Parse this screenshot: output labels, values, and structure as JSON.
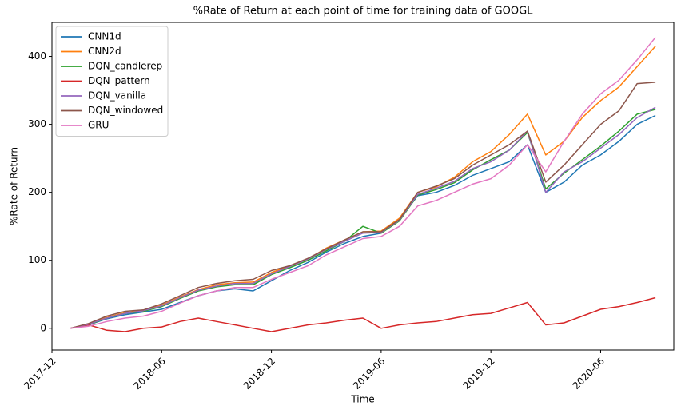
{
  "chart_data": {
    "type": "line",
    "title": "%Rate of Return at each point of time for training data of GOOGL",
    "x_label": "Time",
    "y_label": "%Rate of Return",
    "x": [
      "2018-01",
      "2018-02",
      "2018-03",
      "2018-04",
      "2018-05",
      "2018-06",
      "2018-07",
      "2018-08",
      "2018-09",
      "2018-10",
      "2018-11",
      "2018-12",
      "2019-01",
      "2019-02",
      "2019-03",
      "2019-04",
      "2019-05",
      "2019-06",
      "2019-07",
      "2019-08",
      "2019-09",
      "2019-10",
      "2019-11",
      "2019-12",
      "2020-01",
      "2020-02",
      "2020-03",
      "2020-04",
      "2020-05",
      "2020-06",
      "2020-07",
      "2020-08",
      "2020-09"
    ],
    "series": [
      {
        "name": "CNN1d",
        "color": "#1f77b4",
        "values": [
          0,
          5,
          14,
          20,
          24,
          28,
          38,
          48,
          55,
          58,
          55,
          70,
          85,
          97,
          112,
          125,
          135,
          140,
          160,
          195,
          200,
          210,
          225,
          235,
          245,
          270,
          200,
          215,
          240,
          255,
          275,
          300,
          313
        ]
      },
      {
        "name": "CNN2d",
        "color": "#ff7f0e",
        "values": [
          0,
          6,
          16,
          23,
          26,
          34,
          46,
          57,
          64,
          67,
          68,
          82,
          92,
          102,
          118,
          130,
          142,
          143,
          162,
          200,
          208,
          222,
          245,
          260,
          285,
          315,
          255,
          275,
          310,
          335,
          355,
          385,
          415
        ]
      },
      {
        "name": "DQN_candlerep",
        "color": "#2ca02c",
        "values": [
          0,
          5,
          15,
          22,
          25,
          32,
          44,
          55,
          61,
          64,
          64,
          79,
          89,
          100,
          114,
          128,
          150,
          140,
          158,
          196,
          204,
          214,
          233,
          248,
          262,
          288,
          205,
          228,
          248,
          268,
          290,
          315,
          322
        ]
      },
      {
        "name": "DQN_pattern",
        "color": "#d62728",
        "values": [
          0,
          5,
          -3,
          -5,
          0,
          2,
          10,
          15,
          10,
          5,
          0,
          -5,
          0,
          5,
          8,
          12,
          15,
          0,
          5,
          8,
          10,
          15,
          20,
          22,
          30,
          38,
          5,
          8,
          18,
          28,
          32,
          38,
          45
        ]
      },
      {
        "name": "DQN_vanilla",
        "color": "#9467bd",
        "values": [
          0,
          6,
          15,
          22,
          26,
          33,
          45,
          56,
          62,
          66,
          66,
          80,
          91,
          102,
          116,
          128,
          140,
          141,
          159,
          197,
          206,
          216,
          235,
          245,
          262,
          290,
          200,
          230,
          245,
          265,
          285,
          310,
          325
        ]
      },
      {
        "name": "DQN_windowed",
        "color": "#8c564b",
        "values": [
          0,
          7,
          18,
          25,
          27,
          36,
          48,
          60,
          66,
          70,
          72,
          85,
          92,
          103,
          117,
          130,
          142,
          142,
          160,
          200,
          209,
          220,
          240,
          255,
          270,
          290,
          215,
          240,
          270,
          300,
          320,
          360,
          362
        ]
      },
      {
        "name": "GRU",
        "color": "#e377c2",
        "values": [
          0,
          3,
          10,
          15,
          18,
          25,
          37,
          48,
          55,
          60,
          60,
          72,
          82,
          92,
          108,
          120,
          132,
          135,
          150,
          180,
          188,
          200,
          212,
          220,
          240,
          270,
          230,
          275,
          315,
          345,
          365,
          395,
          428
        ]
      }
    ],
    "xlim": [
      "2017-12",
      "2020-10"
    ],
    "xticks": [
      "2017-12",
      "2018-06",
      "2018-12",
      "2019-06",
      "2019-12",
      "2020-06"
    ],
    "ylim": [
      -32,
      450
    ],
    "yticks": [
      0,
      100,
      200,
      300,
      400
    ],
    "legend": "upper left"
  }
}
